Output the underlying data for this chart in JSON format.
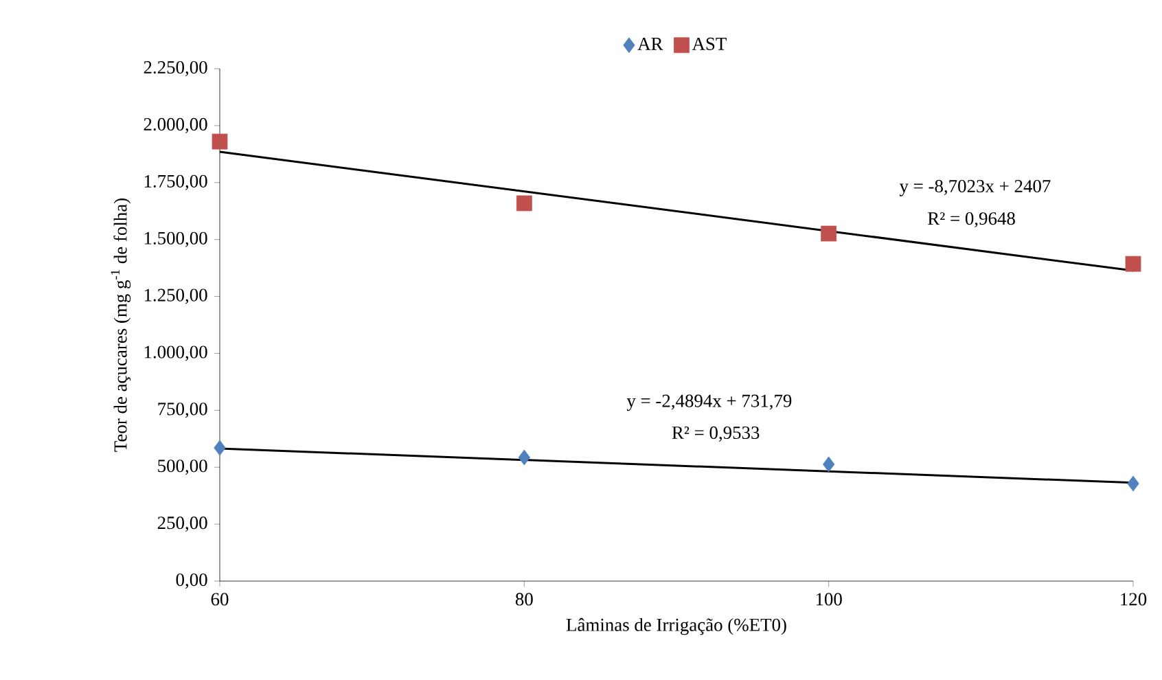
{
  "chart_data": {
    "type": "scatter",
    "xlabel": "Lâminas de Irrigação (%ET0)",
    "ylabel": "Teor de açucares (mg g$^{-1}$ de  folha)",
    "xlim": [
      60,
      120
    ],
    "xticks": [
      60,
      80,
      100,
      120
    ],
    "ylim": [
      0,
      2250
    ],
    "yticks": [
      {
        "value": 0,
        "label": "0,00"
      },
      {
        "value": 250,
        "label": "250,00"
      },
      {
        "value": 500,
        "label": "500,00"
      },
      {
        "value": 750,
        "label": "750,00"
      },
      {
        "value": 1000,
        "label": "1.000,00"
      },
      {
        "value": 1250,
        "label": "1.250,00"
      },
      {
        "value": 1500,
        "label": "1.500,00"
      },
      {
        "value": 1750,
        "label": "1.750,00"
      },
      {
        "value": 2000,
        "label": "2.000,00"
      },
      {
        "value": 2250,
        "label": "2.250,00"
      }
    ],
    "grid": false,
    "legend": "top",
    "series": [
      {
        "name": "AR",
        "color": "#4f81bd",
        "marker": "diamond",
        "x": [
          60,
          80,
          100,
          120
        ],
        "values": [
          585,
          543,
          513,
          428
        ]
      },
      {
        "name": "AST",
        "color": "#c0504d",
        "marker": "square",
        "x": [
          60,
          80,
          100,
          120
        ],
        "values": [
          1930,
          1659,
          1526,
          1393
        ]
      },
      {
        "type": "line",
        "color": "#000000",
        "marker": "none",
        "x": [
          60,
          120
        ],
        "values": [
          582,
          432
        ]
      },
      {
        "type": "line",
        "color": "#000000",
        "marker": "none",
        "x": [
          60,
          120
        ],
        "values": [
          1885,
          1363
        ]
      }
    ],
    "annotations": [
      "y = -8,7023x + 2407",
      "R² = 0,9648",
      "y = -2,4894x + 731,79",
      "R² = 0,9533"
    ]
  }
}
